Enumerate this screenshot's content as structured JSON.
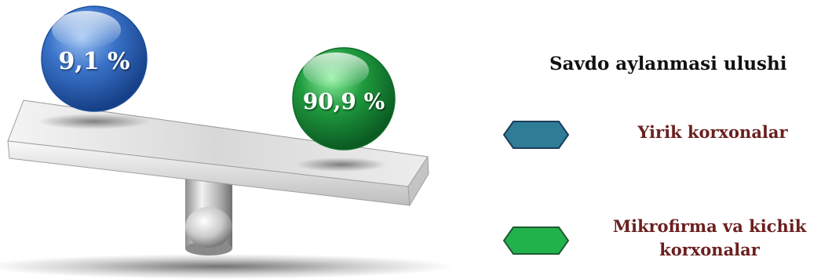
{
  "chart_data": {
    "type": "pie",
    "title": "Savdo aylanmasi ulushi",
    "series": [
      {
        "name": "Yirik korxonalar",
        "value": 9.1,
        "label": "9,1 %",
        "color": "#3a73c9"
      },
      {
        "name": "Mikrofirma va kichik korxonalar",
        "value": 90.9,
        "label": "90,9 %",
        "color": "#1f9a3e"
      }
    ]
  },
  "legend": {
    "title": "Savdo aylanmasi ulushi",
    "items": [
      {
        "label": "Yirik korxonalar",
        "text_color": "#6b1f1f",
        "swatch_color": "#2e7c96",
        "swatch_border": "#1c3e5a"
      },
      {
        "label": "Mikrofirma va kichik korxonalar",
        "text_color": "#6b1f1f",
        "swatch_color": "#22b24c",
        "swatch_border": "#1f5a33"
      }
    ]
  }
}
